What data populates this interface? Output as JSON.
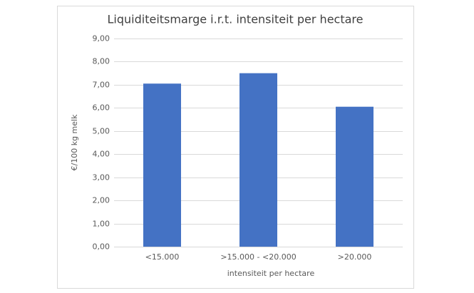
{
  "chart_data": {
    "type": "bar",
    "title": "Liquiditeitsmarge i.r.t. intensiteit per hectare",
    "x_label": "intensiteit per hectare",
    "y_label": "€/100 kg melk",
    "categories": [
      "<15.000",
      ">15.000 - <20.000",
      ">20.000"
    ],
    "values": [
      7.05,
      7.5,
      6.05
    ],
    "color": "#4472c4",
    "ylim": [
      0,
      9
    ],
    "yticks": [
      {
        "value": 0,
        "label": "0,00"
      },
      {
        "value": 1,
        "label": "1,00"
      },
      {
        "value": 2,
        "label": "2,00"
      },
      {
        "value": 3,
        "label": "3,00"
      },
      {
        "value": 4,
        "label": "4,00"
      },
      {
        "value": 5,
        "label": "5,00"
      },
      {
        "value": 6,
        "label": "6,00"
      },
      {
        "value": 7,
        "label": "7,00"
      },
      {
        "value": 8,
        "label": "8,00"
      },
      {
        "value": 9,
        "label": "9,00"
      }
    ],
    "grid": true
  }
}
